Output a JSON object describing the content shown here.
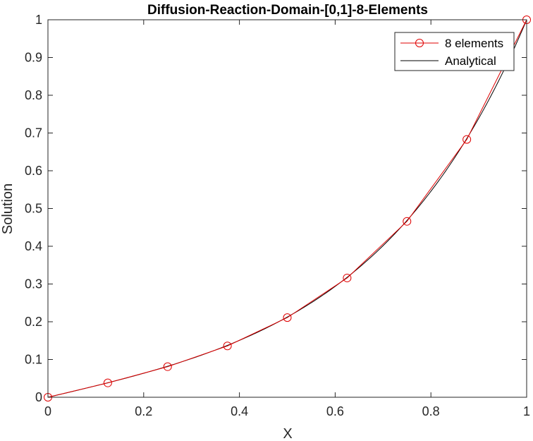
{
  "chart_data": {
    "type": "line",
    "title": "Diffusion-Reaction-Domain-[0,1]-8-Elements",
    "xlabel": "X",
    "ylabel": "Solution",
    "xlim": [
      0,
      1
    ],
    "ylim": [
      0,
      1
    ],
    "xticks": [
      0,
      0.2,
      0.4,
      0.6,
      0.8,
      1
    ],
    "yticks": [
      0,
      0.1,
      0.2,
      0.3,
      0.4,
      0.5,
      0.6,
      0.7,
      0.8,
      0.9,
      1
    ],
    "xtick_labels": [
      "0",
      "0.2",
      "0.4",
      "0.6",
      "0.8",
      "1"
    ],
    "ytick_labels": [
      "0",
      "0.1",
      "0.2",
      "0.3",
      "0.4",
      "0.5",
      "0.6",
      "0.7",
      "0.8",
      "0.9",
      "1"
    ],
    "grid": false,
    "legend_location": "top-right",
    "series": [
      {
        "name": "8 elements",
        "color": "#e00000",
        "marker": "circle",
        "x": [
          0,
          0.125,
          0.25,
          0.375,
          0.5,
          0.625,
          0.75,
          0.875,
          1
        ],
        "y": [
          0,
          0.038,
          0.081,
          0.136,
          0.211,
          0.316,
          0.466,
          0.683,
          1
        ]
      },
      {
        "name": "Analytical",
        "color": "#000000",
        "marker": "none",
        "function": "sinh(3x)/sinh(3)",
        "x_start": 0,
        "x_end": 1
      }
    ]
  }
}
